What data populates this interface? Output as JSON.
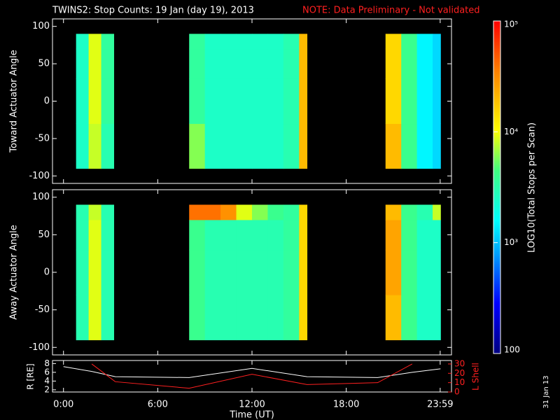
{
  "chart_data": [
    {
      "type": "heatmap",
      "title": "TWINS2: Stop Counts: 19 Jan (day  19), 2013",
      "note": "NOTE: Data Preliminary - Not validated",
      "y_label": "Toward Actuator Angle",
      "x_bins": [
        0.8,
        1.6,
        2.4,
        3.2,
        8,
        9,
        10,
        11,
        12,
        13,
        14,
        15,
        15.5,
        20.5,
        21.5,
        22.5,
        23.5,
        24
      ],
      "y_bins": [
        -90,
        -30,
        30,
        70,
        90
      ],
      "values": [
        [
          2500,
          8000,
          3000,
          null,
          6000,
          2500,
          2500,
          2500,
          2500,
          2500,
          3000,
          20000,
          null,
          20000,
          4000,
          1500,
          1200
        ],
        [
          2500,
          9000,
          3500,
          null,
          3500,
          2500,
          2500,
          2500,
          2500,
          2500,
          3000,
          20000,
          null,
          15000,
          4000,
          1500,
          1200
        ],
        [
          2500,
          9000,
          3500,
          null,
          3500,
          2500,
          2500,
          2500,
          2500,
          2500,
          3000,
          20000,
          null,
          15000,
          4000,
          1500,
          1200
        ],
        [
          2500,
          9000,
          3500,
          null,
          3500,
          2500,
          2500,
          2500,
          2500,
          2500,
          3000,
          20000,
          null,
          15000,
          4000,
          1500,
          1200
        ]
      ],
      "xlim": [
        -0.7,
        24.7
      ],
      "ylim": [
        -110,
        110
      ],
      "yticks": [
        -100,
        -50,
        0,
        50,
        100
      ],
      "colorbar": {
        "label": "LOG10(Total Stops per Scan)",
        "lim": [
          100,
          100000
        ],
        "ticks": [
          {
            "value": 100,
            "label": "100"
          },
          {
            "value": 1000,
            "label": "10³"
          },
          {
            "value": 10000,
            "label": "10⁴"
          },
          {
            "value": 100000,
            "label": "10⁵"
          }
        ]
      }
    },
    {
      "type": "heatmap",
      "y_label": "Away Actuator Angle",
      "x_bins": [
        0.8,
        1.6,
        2.4,
        3.2,
        8,
        9,
        10,
        11,
        12,
        13,
        14,
        15,
        15.5,
        20.5,
        21.5,
        22.5,
        23.5,
        24
      ],
      "y_bins": [
        -90,
        -30,
        30,
        70,
        90
      ],
      "values": [
        [
          3000,
          9000,
          3000,
          null,
          4000,
          3000,
          3000,
          3000,
          3000,
          3000,
          3500,
          15000,
          null,
          20000,
          4000,
          2500,
          2500
        ],
        [
          3000,
          9000,
          3000,
          null,
          4000,
          3000,
          3000,
          3000,
          3000,
          3000,
          3500,
          15000,
          null,
          25000,
          4000,
          2500,
          2500
        ],
        [
          3000,
          9000,
          3000,
          null,
          4000,
          3000,
          3000,
          3000,
          3000,
          3000,
          3500,
          15000,
          null,
          25000,
          4000,
          2500,
          2500
        ],
        [
          3000,
          8000,
          3000,
          null,
          40000,
          40000,
          30000,
          9000,
          6000,
          4000,
          3500,
          15000,
          null,
          20000,
          4000,
          3000,
          8000
        ]
      ],
      "xlim": [
        -0.7,
        24.7
      ],
      "ylim": [
        -110,
        110
      ],
      "yticks": [
        -100,
        -50,
        0,
        50,
        100
      ]
    },
    {
      "type": "line",
      "x_label": "Time (UT)",
      "y_label": "R [RE]",
      "y2_label": "L Shell",
      "x": [
        0,
        1.8,
        3.3,
        8,
        12,
        15.5,
        20,
        22.2,
        24
      ],
      "series": [
        {
          "name": "R [RE]",
          "color": "#ffffff",
          "values": [
            7.3,
            6.2,
            5,
            4.8,
            6.9,
            5,
            4.8,
            6,
            6.8
          ]
        },
        {
          "name": "L Shell",
          "color": "#ff2020",
          "axis": "y2",
          "values": [
            null,
            30,
            11,
            4,
            19,
            8,
            10,
            30,
            null
          ]
        }
      ],
      "xlim": [
        -0.7,
        24.7
      ],
      "xticks": [
        {
          "value": 0,
          "label": "0:00"
        },
        {
          "value": 6,
          "label": "6:00"
        },
        {
          "value": 12,
          "label": "12:00"
        },
        {
          "value": 18,
          "label": "18:00"
        },
        {
          "value": 23.98,
          "label": "23:59"
        }
      ],
      "ylim": [
        1.5,
        8.7
      ],
      "yticks": [
        2,
        4,
        6,
        8
      ],
      "y2lim": [
        0,
        33.7
      ],
      "y2ticks": [
        0,
        10,
        20,
        30
      ],
      "footnote": "31 Jan 13"
    }
  ]
}
